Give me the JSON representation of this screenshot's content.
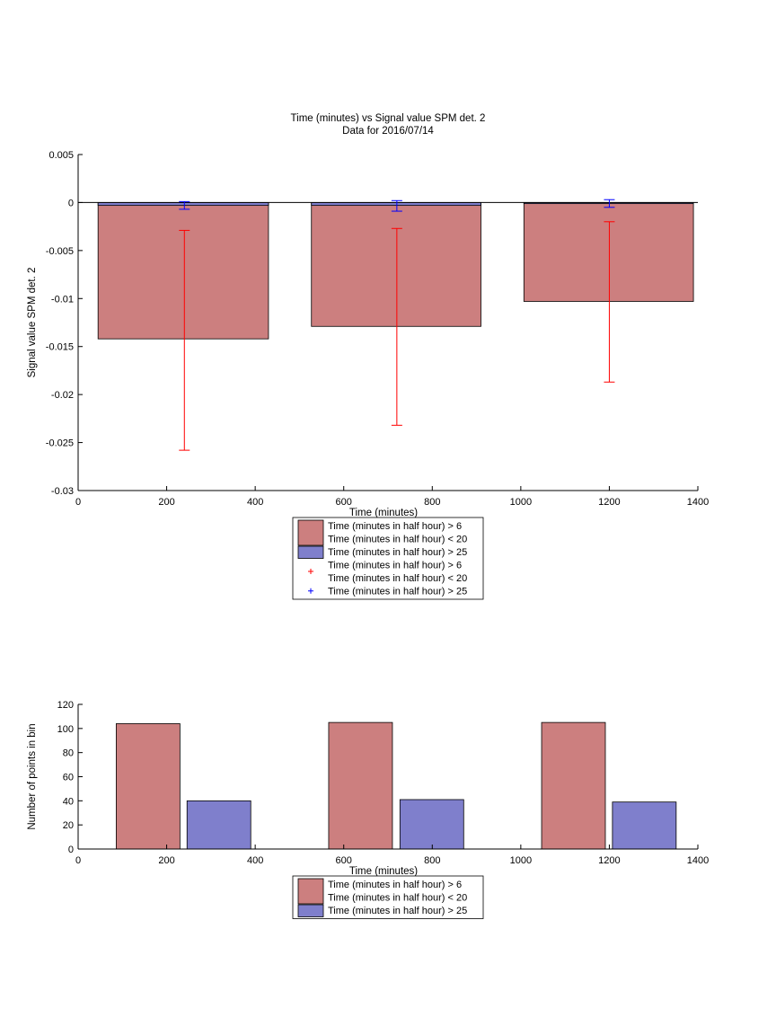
{
  "chart_data": [
    {
      "type": "bar",
      "title": "Time (minutes) vs Signal value SPM det. 2",
      "subtitle": "Data for 2016/07/14",
      "xlabel": "Time (minutes)",
      "ylabel": "Signal value SPM det. 2",
      "xlim": [
        0,
        1400
      ],
      "ylim": [
        -0.03,
        0.005
      ],
      "xticks": [
        0,
        200,
        400,
        600,
        800,
        1000,
        1200,
        1400
      ],
      "yticks": [
        0.005,
        0,
        -0.005,
        -0.01,
        -0.015,
        -0.02,
        -0.025,
        -0.03
      ],
      "xtick_labels": [
        "0",
        "200",
        "400",
        "600",
        "800",
        "1000",
        "1200",
        "1400"
      ],
      "ytick_labels": [
        "0.005",
        "0",
        "-0.005",
        "-0.01",
        "-0.015",
        "-0.02",
        "-0.025",
        "-0.03"
      ],
      "grid": false,
      "colors": {
        "red": "#cc7f7f",
        "blue": "#7f7fcc",
        "red_error": "#ff0000",
        "blue_error": "#0000ff"
      },
      "series": [
        {
          "name": "Time (minutes in half hour) > 6\nTime (minutes in half hour) < 20",
          "color": "#cc7f7f",
          "x": [
            240,
            720,
            1200
          ],
          "bar_x_range": [
            [
              45,
              430
            ],
            [
              527,
              910
            ],
            [
              1007,
              1390
            ]
          ],
          "values": [
            -0.0142,
            -0.0129,
            -0.0103
          ],
          "error_low": [
            -0.0258,
            -0.0232,
            -0.0187
          ],
          "error_high": [
            -0.0029,
            -0.0027,
            -0.002
          ]
        },
        {
          "name": "Time (minutes in half hour) > 25",
          "color": "#7f7fcc",
          "x": [
            240,
            720,
            1200
          ],
          "bar_x_range": [
            [
              45,
              430
            ],
            [
              527,
              910
            ],
            [
              1007,
              1390
            ]
          ],
          "values": [
            -0.0003,
            -0.0003,
            -0.0001
          ],
          "error_low": [
            -0.0007,
            -0.0009,
            -0.0005
          ],
          "error_high": [
            0.0001,
            0.0002,
            0.0003
          ]
        }
      ],
      "legend": {
        "location": "below",
        "entries": [
          {
            "kind": "bar",
            "color": "#cc7f7f",
            "lines": [
              "Time (minutes in half hour) > 6",
              "Time (minutes in half hour) < 20"
            ]
          },
          {
            "kind": "bar",
            "color": "#7f7fcc",
            "lines": [
              "Time (minutes in half hour) > 25"
            ]
          },
          {
            "kind": "marker",
            "color": "#ff0000",
            "lines": [
              "Time (minutes in half hour) > 6",
              "Time (minutes in half hour) < 20"
            ]
          },
          {
            "kind": "marker",
            "color": "#0000ff",
            "lines": [
              "Time (minutes in half hour) > 25"
            ]
          }
        ]
      }
    },
    {
      "type": "bar",
      "title": "",
      "xlabel": "Time (minutes)",
      "ylabel": "Number of points in bin",
      "xlim": [
        0,
        1400
      ],
      "ylim": [
        0,
        120
      ],
      "xticks": [
        0,
        200,
        400,
        600,
        800,
        1000,
        1200,
        1400
      ],
      "yticks": [
        0,
        20,
        40,
        60,
        80,
        100,
        120
      ],
      "xtick_labels": [
        "0",
        "200",
        "400",
        "600",
        "800",
        "1000",
        "1200",
        "1400"
      ],
      "ytick_labels": [
        "0",
        "20",
        "40",
        "60",
        "80",
        "100",
        "120"
      ],
      "grid": false,
      "series": [
        {
          "name": "Time (minutes in half hour) > 6\nTime (minutes in half hour) < 20",
          "color": "#cc7f7f",
          "bar_x_range": [
            [
              86,
              230
            ],
            [
              566,
              710
            ],
            [
              1047,
              1191
            ]
          ],
          "values": [
            104,
            105,
            105
          ]
        },
        {
          "name": "Time (minutes in half hour) > 25",
          "color": "#7f7fcc",
          "bar_x_range": [
            [
              246,
              390
            ],
            [
              727,
              871
            ],
            [
              1207,
              1351
            ]
          ],
          "values": [
            40,
            41,
            39
          ]
        }
      ],
      "legend": {
        "location": "below",
        "entries": [
          {
            "kind": "bar",
            "color": "#cc7f7f",
            "lines": [
              "Time (minutes in half hour) > 6",
              "Time (minutes in half hour) < 20"
            ]
          },
          {
            "kind": "bar",
            "color": "#7f7fcc",
            "lines": [
              "Time (minutes in half hour) > 25"
            ]
          }
        ]
      }
    }
  ]
}
